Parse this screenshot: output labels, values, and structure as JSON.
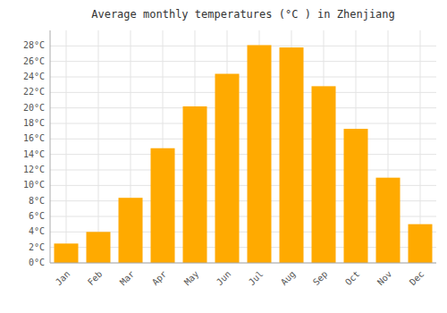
{
  "chart_data": {
    "type": "bar",
    "title": "Average monthly temperatures (°C ) in Zhenjiang",
    "categories": [
      "Jan",
      "Feb",
      "Mar",
      "Apr",
      "May",
      "Jun",
      "Jul",
      "Aug",
      "Sep",
      "Oct",
      "Nov",
      "Dec"
    ],
    "values": [
      2.5,
      4.0,
      8.4,
      14.8,
      20.2,
      24.4,
      28.1,
      27.8,
      22.8,
      17.3,
      11.0,
      5.0
    ],
    "color": "#FFAA00",
    "ylim": [
      0,
      30
    ],
    "yticks": [
      {
        "value": 0,
        "label": "0°C"
      },
      {
        "value": 2,
        "label": "2°C"
      },
      {
        "value": 4,
        "label": "4°C"
      },
      {
        "value": 6,
        "label": "6°C"
      },
      {
        "value": 8,
        "label": "8°C"
      },
      {
        "value": 10,
        "label": "10°C"
      },
      {
        "value": 12,
        "label": "12°C"
      },
      {
        "value": 14,
        "label": "14°C"
      },
      {
        "value": 16,
        "label": "16°C"
      },
      {
        "value": 18,
        "label": "18°C"
      },
      {
        "value": 20,
        "label": "20°C"
      },
      {
        "value": 22,
        "label": "22°C"
      },
      {
        "value": 24,
        "label": "24°C"
      },
      {
        "value": 26,
        "label": "26°C"
      },
      {
        "value": 28,
        "label": "28°C"
      }
    ],
    "grid": true
  }
}
